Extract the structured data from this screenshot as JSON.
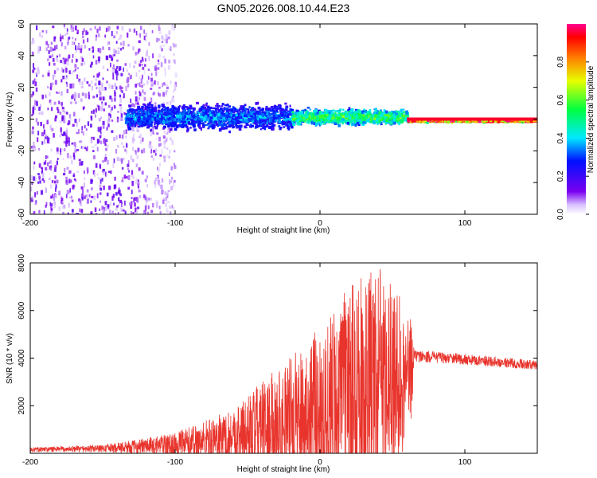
{
  "title": "GN05.2026.008.10.44.E23",
  "chart_data": [
    {
      "type": "heatmap",
      "name": "spectrogram",
      "xlabel": "Height of straight line (km)",
      "ylabel": "Frequency (Hz)",
      "xlim": [
        -200,
        150
      ],
      "ylim": [
        -60,
        60
      ],
      "xticks": [
        -200,
        -100,
        0,
        100
      ],
      "yticks": [
        -60,
        -40,
        -20,
        0,
        20,
        40,
        60
      ],
      "colorbar": {
        "label": "Normalized spectral amplitude",
        "range": [
          0.0,
          1.0
        ],
        "ticks": [
          0.0,
          0.2,
          0.4,
          0.6,
          0.8
        ],
        "tick_labels": [
          "0.0",
          "0.2",
          "0.4",
          "0.6",
          "0.8"
        ]
      },
      "regions": [
        {
          "desc": "scattered noise",
          "x_range": [
            -200,
            -100
          ],
          "freq_range": [
            -60,
            60
          ],
          "amplitude": 0.12
        },
        {
          "desc": "broad band",
          "x_range": [
            -135,
            -20
          ],
          "freq_center": 2,
          "freq_halfwidth": 10,
          "amplitude": 0.35
        },
        {
          "desc": "narrowing band",
          "x_range": [
            -20,
            60
          ],
          "freq_center": 2,
          "freq_halfwidth": 6,
          "amplitude": 0.55
        },
        {
          "desc": "steady line",
          "x_range": [
            60,
            150
          ],
          "freq_center": 0,
          "freq_halfwidth": 1,
          "amplitude": 0.95
        }
      ]
    },
    {
      "type": "line",
      "name": "snr",
      "xlabel": "Height of straight line (km)",
      "ylabel": "SNR (10 * v/v)",
      "xlim": [
        -200,
        150
      ],
      "ylim": [
        0,
        8000
      ],
      "xticks": [
        -200,
        -100,
        0,
        100
      ],
      "yticks": [
        2000,
        4000,
        6000,
        8000
      ],
      "color": "#e8342c",
      "envelope": [
        {
          "x": -200,
          "base": 150,
          "amp": 100
        },
        {
          "x": -150,
          "base": 200,
          "amp": 150
        },
        {
          "x": -120,
          "base": 300,
          "amp": 350
        },
        {
          "x": -100,
          "base": 350,
          "amp": 500
        },
        {
          "x": -80,
          "base": 500,
          "amp": 900
        },
        {
          "x": -60,
          "base": 700,
          "amp": 1200
        },
        {
          "x": -40,
          "base": 1000,
          "amp": 2000
        },
        {
          "x": -20,
          "base": 1300,
          "amp": 2800
        },
        {
          "x": 0,
          "base": 1800,
          "amp": 3500
        },
        {
          "x": 20,
          "base": 2500,
          "amp": 4500
        },
        {
          "x": 40,
          "base": 3000,
          "amp": 4900
        },
        {
          "x": 55,
          "base": 3200,
          "amp": 3600
        },
        {
          "x": 63,
          "base": 3500,
          "amp": 2200
        },
        {
          "x": 65,
          "base": 4100,
          "amp": 250
        },
        {
          "x": 100,
          "base": 3950,
          "amp": 220
        },
        {
          "x": 150,
          "base": 3700,
          "amp": 200
        }
      ]
    }
  ]
}
